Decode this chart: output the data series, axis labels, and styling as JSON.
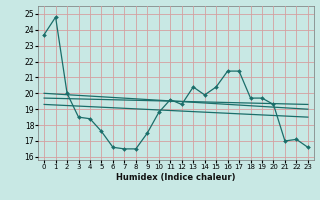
{
  "title": "",
  "xlabel": "Humidex (Indice chaleur)",
  "ylabel": "",
  "bg_color": "#c8e8e4",
  "grid_color": "#d4a0a0",
  "line_color": "#1a6e6a",
  "xlim": [
    -0.5,
    23.5
  ],
  "ylim": [
    15.8,
    25.5
  ],
  "yticks": [
    16,
    17,
    18,
    19,
    20,
    21,
    22,
    23,
    24,
    25
  ],
  "xticks": [
    0,
    1,
    2,
    3,
    4,
    5,
    6,
    7,
    8,
    9,
    10,
    11,
    12,
    13,
    14,
    15,
    16,
    17,
    18,
    19,
    20,
    21,
    22,
    23
  ],
  "line1_x": [
    0,
    1,
    2,
    3,
    4,
    5,
    6,
    7,
    8,
    9,
    10,
    11,
    12,
    13,
    14,
    15,
    16,
    17,
    18,
    19,
    20,
    21,
    22,
    23
  ],
  "line1_y": [
    23.7,
    24.8,
    20.0,
    18.5,
    18.4,
    17.6,
    16.6,
    16.5,
    16.5,
    17.5,
    18.8,
    19.6,
    19.3,
    20.4,
    19.9,
    20.4,
    21.4,
    21.4,
    19.7,
    19.7,
    19.3,
    17.0,
    17.1,
    16.6
  ],
  "line2_x": [
    0,
    23
  ],
  "line2_y": [
    20.0,
    19.0
  ],
  "line3_x": [
    0,
    23
  ],
  "line3_y": [
    19.7,
    19.3
  ],
  "line4_x": [
    0,
    23
  ],
  "line4_y": [
    19.3,
    18.5
  ]
}
